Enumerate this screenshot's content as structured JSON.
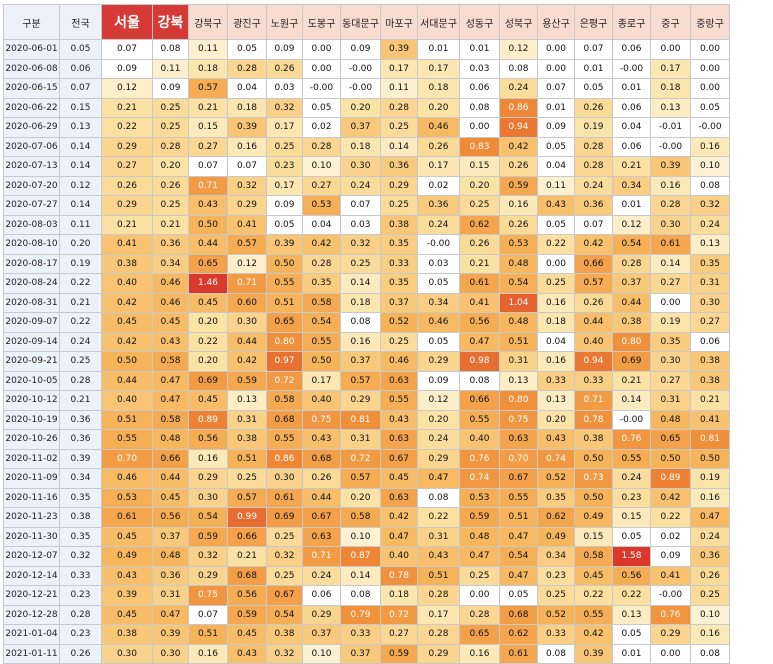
{
  "chart_data": {
    "type": "heatmap",
    "corner_label": "구분",
    "columns": [
      "전국",
      "서울",
      "강북",
      "강북구",
      "광진구",
      "노원구",
      "도봉구",
      "동대문구",
      "마포구",
      "서대문구",
      "성동구",
      "성북구",
      "용산구",
      "은평구",
      "종로구",
      "중구",
      "중랑구"
    ],
    "highlight_columns": [
      "서울",
      "강북"
    ],
    "rows": [
      {
        "date": "2020-06-01",
        "values": [
          0.05,
          0.07,
          0.08,
          0.11,
          0.05,
          0.09,
          0.0,
          0.09,
          0.39,
          0.01,
          0.01,
          0.12,
          0.0,
          0.07,
          0.06,
          0.0,
          0.0
        ]
      },
      {
        "date": "2020-06-08",
        "values": [
          0.06,
          0.09,
          0.11,
          0.18,
          0.28,
          0.26,
          0.0,
          -0.0,
          0.17,
          0.17,
          0.03,
          0.08,
          0.0,
          0.01,
          -0.0,
          0.17,
          0.0
        ]
      },
      {
        "date": "2020-06-15",
        "values": [
          0.07,
          0.12,
          0.09,
          0.57,
          0.04,
          0.03,
          -0.0,
          -0.0,
          0.11,
          0.18,
          0.06,
          0.24,
          0.07,
          0.05,
          0.01,
          0.18,
          0.0
        ]
      },
      {
        "date": "2020-06-22",
        "values": [
          0.15,
          0.21,
          0.25,
          0.21,
          0.18,
          0.32,
          0.05,
          0.2,
          0.28,
          0.2,
          0.08,
          0.86,
          0.01,
          0.26,
          0.06,
          0.13,
          0.05
        ]
      },
      {
        "date": "2020-06-29",
        "values": [
          0.13,
          0.22,
          0.25,
          0.15,
          0.39,
          0.17,
          0.02,
          0.37,
          0.25,
          0.46,
          0.0,
          0.94,
          0.09,
          0.19,
          0.04,
          -0.01,
          -0.0
        ]
      },
      {
        "date": "2020-07-06",
        "values": [
          0.14,
          0.29,
          0.28,
          0.27,
          0.16,
          0.25,
          0.28,
          0.18,
          0.14,
          0.26,
          0.83,
          0.42,
          0.05,
          0.28,
          0.06,
          -0.0,
          0.16
        ]
      },
      {
        "date": "2020-07-13",
        "values": [
          0.14,
          0.27,
          0.2,
          0.07,
          0.07,
          0.23,
          0.1,
          0.3,
          0.36,
          0.17,
          0.15,
          0.26,
          0.04,
          0.28,
          0.21,
          0.39,
          0.1
        ]
      },
      {
        "date": "2020-07-20",
        "values": [
          0.12,
          0.26,
          0.26,
          0.71,
          0.32,
          0.17,
          0.27,
          0.24,
          0.29,
          0.02,
          0.2,
          0.59,
          0.11,
          0.24,
          0.34,
          0.16,
          0.08
        ]
      },
      {
        "date": "2020-07-27",
        "values": [
          0.14,
          0.29,
          0.25,
          0.43,
          0.29,
          0.09,
          0.53,
          0.07,
          0.25,
          0.36,
          0.25,
          0.16,
          0.43,
          0.36,
          0.01,
          0.28,
          0.32
        ]
      },
      {
        "date": "2020-08-03",
        "values": [
          0.11,
          0.21,
          0.21,
          0.5,
          0.41,
          0.05,
          0.04,
          0.03,
          0.38,
          0.24,
          0.62,
          0.26,
          0.05,
          0.07,
          0.12,
          0.3,
          0.24
        ]
      },
      {
        "date": "2020-08-10",
        "values": [
          0.2,
          0.41,
          0.36,
          0.44,
          0.57,
          0.39,
          0.42,
          0.32,
          0.35,
          -0.0,
          0.26,
          0.53,
          0.22,
          0.42,
          0.54,
          0.61,
          0.13
        ]
      },
      {
        "date": "2020-08-17",
        "values": [
          0.19,
          0.38,
          0.34,
          0.65,
          0.12,
          0.5,
          0.28,
          0.25,
          0.33,
          0.03,
          0.21,
          0.48,
          0.0,
          0.66,
          0.28,
          0.14,
          0.35
        ]
      },
      {
        "date": "2020-08-24",
        "values": [
          0.22,
          0.4,
          0.46,
          1.46,
          0.71,
          0.55,
          0.35,
          0.14,
          0.35,
          0.05,
          0.61,
          0.54,
          0.25,
          0.57,
          0.37,
          0.27,
          0.31
        ]
      },
      {
        "date": "2020-08-31",
        "values": [
          0.21,
          0.42,
          0.46,
          0.45,
          0.6,
          0.51,
          0.58,
          0.18,
          0.37,
          0.34,
          0.41,
          1.04,
          0.16,
          0.26,
          0.44,
          0.0,
          0.3
        ]
      },
      {
        "date": "2020-09-07",
        "values": [
          0.22,
          0.45,
          0.45,
          0.2,
          0.3,
          0.65,
          0.54,
          0.08,
          0.52,
          0.46,
          0.56,
          0.48,
          0.18,
          0.44,
          0.38,
          0.19,
          0.27
        ]
      },
      {
        "date": "2020-09-14",
        "values": [
          0.24,
          0.42,
          0.43,
          0.22,
          0.44,
          0.8,
          0.55,
          0.16,
          0.25,
          0.05,
          0.47,
          0.51,
          0.04,
          0.4,
          0.8,
          0.35,
          0.06
        ]
      },
      {
        "date": "2020-09-21",
        "values": [
          0.25,
          0.5,
          0.58,
          0.2,
          0.42,
          0.97,
          0.5,
          0.37,
          0.46,
          0.29,
          0.98,
          0.31,
          0.16,
          0.94,
          0.69,
          0.3,
          0.38
        ]
      },
      {
        "date": "2020-10-05",
        "values": [
          0.28,
          0.44,
          0.47,
          0.69,
          0.59,
          0.72,
          0.17,
          0.57,
          0.63,
          0.09,
          0.08,
          0.13,
          0.33,
          0.33,
          0.21,
          0.27,
          0.38
        ]
      },
      {
        "date": "2020-10-12",
        "values": [
          0.21,
          0.4,
          0.47,
          0.45,
          0.13,
          0.58,
          0.4,
          0.29,
          0.55,
          0.12,
          0.66,
          0.8,
          0.13,
          0.71,
          0.14,
          0.31,
          0.21
        ]
      },
      {
        "date": "2020-10-19",
        "values": [
          0.36,
          0.51,
          0.58,
          0.89,
          0.31,
          0.68,
          0.75,
          0.81,
          0.43,
          0.2,
          0.55,
          0.75,
          0.2,
          0.78,
          -0.0,
          0.48,
          0.41
        ]
      },
      {
        "date": "2020-10-26",
        "values": [
          0.36,
          0.55,
          0.48,
          0.56,
          0.38,
          0.55,
          0.43,
          0.31,
          0.63,
          0.24,
          0.4,
          0.63,
          0.43,
          0.38,
          0.76,
          0.65,
          0.81
        ]
      },
      {
        "date": "2020-11-02",
        "values": [
          0.39,
          0.7,
          0.66,
          0.16,
          0.51,
          0.86,
          0.68,
          0.72,
          0.67,
          0.29,
          0.76,
          0.7,
          0.74,
          0.5,
          0.55,
          0.5,
          0.5
        ]
      },
      {
        "date": "2020-11-09",
        "values": [
          0.34,
          0.46,
          0.44,
          0.29,
          0.25,
          0.3,
          0.26,
          0.57,
          0.45,
          0.47,
          0.74,
          0.67,
          0.52,
          0.73,
          0.24,
          0.89,
          0.19
        ]
      },
      {
        "date": "2020-11-16",
        "values": [
          0.35,
          0.53,
          0.45,
          0.3,
          0.57,
          0.61,
          0.44,
          0.2,
          0.63,
          0.08,
          0.53,
          0.55,
          0.35,
          0.5,
          0.23,
          0.42,
          0.16
        ]
      },
      {
        "date": "2020-11-23",
        "values": [
          0.38,
          0.61,
          0.56,
          0.54,
          0.99,
          0.69,
          0.67,
          0.58,
          0.42,
          0.22,
          0.59,
          0.51,
          0.62,
          0.49,
          0.15,
          0.22,
          0.47
        ]
      },
      {
        "date": "2020-11-30",
        "values": [
          0.35,
          0.45,
          0.37,
          0.59,
          0.66,
          0.25,
          0.63,
          0.1,
          0.47,
          0.31,
          0.48,
          0.47,
          0.49,
          0.15,
          0.05,
          0.02,
          0.24
        ]
      },
      {
        "date": "2020-12-07",
        "values": [
          0.32,
          0.49,
          0.48,
          0.32,
          0.21,
          0.32,
          0.71,
          0.87,
          0.4,
          0.43,
          0.47,
          0.54,
          0.34,
          0.58,
          1.58,
          0.09,
          0.36
        ]
      },
      {
        "date": "2020-12-14",
        "values": [
          0.33,
          0.43,
          0.36,
          0.29,
          0.68,
          0.25,
          0.24,
          0.14,
          0.78,
          0.51,
          0.25,
          0.47,
          0.23,
          0.45,
          0.56,
          0.41,
          0.26
        ]
      },
      {
        "date": "2020-12-21",
        "values": [
          0.23,
          0.39,
          0.31,
          0.75,
          0.56,
          0.67,
          0.06,
          0.08,
          0.18,
          0.28,
          0.0,
          0.05,
          0.25,
          0.22,
          0.22,
          -0.0,
          0.25
        ]
      },
      {
        "date": "2020-12-28",
        "values": [
          0.28,
          0.45,
          0.47,
          0.07,
          0.59,
          0.54,
          0.29,
          0.79,
          0.72,
          0.17,
          0.28,
          0.68,
          0.52,
          0.55,
          0.13,
          0.76,
          0.1
        ]
      },
      {
        "date": "2021-01-04",
        "values": [
          0.23,
          0.38,
          0.39,
          0.51,
          0.45,
          0.38,
          0.37,
          0.33,
          0.27,
          0.28,
          0.65,
          0.62,
          0.33,
          0.42,
          0.05,
          0.29,
          0.16
        ]
      },
      {
        "date": "2021-01-11",
        "values": [
          0.26,
          0.3,
          0.3,
          0.16,
          0.43,
          0.32,
          0.1,
          0.37,
          0.59,
          0.29,
          0.16,
          0.61,
          0.08,
          0.39,
          0.01,
          0.0,
          0.08
        ]
      }
    ],
    "color_scale": {
      "low": "#ffffff",
      "mid_low": "#fbe3a6",
      "mid": "#f6b45a",
      "mid_high": "#ef8a36",
      "high": "#d9382a",
      "domain": [
        0,
        1.6
      ]
    }
  }
}
